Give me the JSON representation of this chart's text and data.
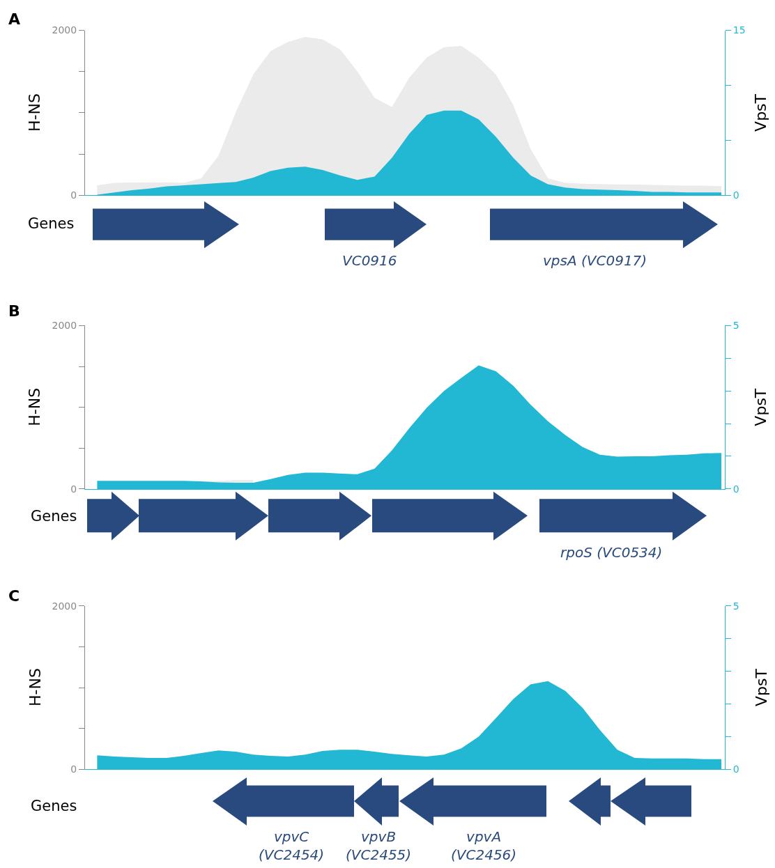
{
  "chart_data": [
    {
      "type": "area",
      "title": "A",
      "ylabel": "H-NS",
      "y2label": "VpsT",
      "annotations": [
        "Genes",
        "VC0916",
        "vpsA (VC0917)"
      ],
      "categories": [
        null,
        null,
        null,
        null,
        null,
        null,
        null,
        null,
        null,
        null,
        null,
        null,
        null,
        null,
        null,
        null,
        null,
        null,
        null,
        null,
        null,
        null,
        null,
        null,
        null,
        null,
        null,
        null,
        null,
        null,
        null,
        null,
        null,
        null,
        null,
        null,
        null
      ],
      "series": [
        {
          "color": "#ebebeb",
          "values": [
            120,
            150,
            155,
            155,
            155,
            150,
            205,
            480,
            1010,
            1465,
            1750,
            1860,
            1920,
            1890,
            1770,
            1505,
            1180,
            1070,
            1425,
            1670,
            1795,
            1810,
            1670,
            1465,
            1095,
            560,
            205,
            150,
            140,
            135,
            130,
            130,
            125,
            120,
            115,
            115,
            110
          ]
        },
        {
          "color": "#22b7d3",
          "axis": "y2",
          "values": [
            0.05,
            0.25,
            0.45,
            0.6,
            0.8,
            0.9,
            1.0,
            1.1,
            1.2,
            1.6,
            2.2,
            2.5,
            2.6,
            2.3,
            1.8,
            1.4,
            1.7,
            3.4,
            5.6,
            7.3,
            7.7,
            7.7,
            6.9,
            5.3,
            3.4,
            1.8,
            1.0,
            0.7,
            0.55,
            0.5,
            0.45,
            0.4,
            0.3,
            0.3,
            0.25,
            0.25,
            0.25
          ]
        }
      ],
      "ylim": [
        0,
        2000
      ],
      "yticks": [
        0,
        {
          "value": 500,
          "label": null
        },
        {
          "value": 1000,
          "label": null
        },
        {
          "value": 1500,
          "label": null
        },
        2000
      ],
      "y2lim": [
        0,
        15
      ],
      "y2ticks": [
        0,
        {
          "value": 5,
          "label": null
        },
        {
          "value": 10,
          "label": null
        },
        15
      ]
    },
    {
      "type": "area",
      "title": "B",
      "ylabel": "H-NS",
      "y2label": "VpsT",
      "annotations": [
        "Genes",
        "rpoS (VC0534)"
      ],
      "categories": [
        null,
        null,
        null,
        null,
        null,
        null,
        null,
        null,
        null,
        null,
        null,
        null,
        null,
        null,
        null,
        null,
        null,
        null,
        null,
        null,
        null,
        null,
        null,
        null,
        null,
        null,
        null,
        null,
        null,
        null,
        null,
        null,
        null,
        null,
        null,
        null,
        null
      ],
      "series": [
        {
          "color": "#ebebeb",
          "values": [
            null,
            null,
            null,
            null,
            null,
            null,
            90,
            100,
            110,
            110,
            null,
            null,
            null,
            null,
            null,
            null,
            null,
            null,
            null,
            null,
            null,
            null,
            null,
            null,
            null,
            null,
            null,
            null,
            null,
            null,
            null,
            null,
            null,
            null,
            null,
            null,
            null
          ]
        },
        {
          "color": "#22b7d3",
          "axis": "y2",
          "values": [
            0.25,
            0.25,
            0.25,
            0.25,
            0.25,
            0.25,
            0.23,
            0.2,
            0.19,
            0.19,
            0.3,
            0.43,
            0.5,
            0.5,
            0.47,
            0.45,
            0.62,
            1.18,
            1.86,
            2.48,
            3.0,
            3.4,
            3.78,
            3.6,
            3.16,
            2.58,
            2.07,
            1.65,
            1.28,
            1.05,
            0.99,
            1.0,
            1.0,
            1.03,
            1.05,
            1.09,
            1.1
          ]
        }
      ],
      "ylim": [
        0,
        2000
      ],
      "yticks": [
        0,
        {
          "value": 500,
          "label": null
        },
        {
          "value": 1000,
          "label": null
        },
        {
          "value": 1500,
          "label": null
        },
        2000
      ],
      "y2lim": [
        0,
        5
      ],
      "y2ticks": [
        0,
        {
          "value": 1,
          "label": null
        },
        {
          "value": 2,
          "label": null
        },
        {
          "value": 3,
          "label": null
        },
        {
          "value": 4,
          "label": null
        },
        5
      ]
    },
    {
      "type": "area",
      "title": "C",
      "ylabel": "H-NS",
      "y2label": "VpsT",
      "annotations": [
        "Genes",
        "vpvC\n(VC2454)",
        "vpvB\n(VC2455)",
        "vpvA\n(VC2456)"
      ],
      "categories": [
        null,
        null,
        null,
        null,
        null,
        null,
        null,
        null,
        null,
        null,
        null,
        null,
        null,
        null,
        null,
        null,
        null,
        null,
        null,
        null,
        null,
        null,
        null,
        null,
        null,
        null,
        null,
        null,
        null,
        null,
        null,
        null,
        null,
        null,
        null,
        null,
        null
      ],
      "series": [
        {
          "color": "#22b7d3",
          "axis": "y2",
          "values": [
            0.43,
            0.39,
            0.37,
            0.35,
            0.35,
            0.41,
            0.5,
            0.58,
            0.54,
            0.45,
            0.41,
            0.39,
            0.45,
            0.56,
            0.6,
            0.6,
            0.54,
            0.47,
            0.43,
            0.39,
            0.45,
            0.64,
            1.0,
            1.57,
            2.15,
            2.6,
            2.7,
            2.4,
            1.88,
            1.2,
            0.6,
            0.35,
            0.33,
            0.33,
            0.33,
            0.31,
            0.31
          ]
        }
      ],
      "ylim": [
        0,
        2000
      ],
      "yticks": [
        0,
        {
          "value": 500,
          "label": null
        },
        {
          "value": 1000,
          "label": null
        },
        {
          "value": 1500,
          "label": null
        },
        2000
      ],
      "y2lim": [
        0,
        5
      ],
      "y2ticks": [
        0,
        {
          "value": 1,
          "label": null
        },
        {
          "value": 2,
          "label": null
        },
        {
          "value": 3,
          "label": null
        },
        {
          "value": 4,
          "label": null
        },
        5
      ]
    }
  ]
}
